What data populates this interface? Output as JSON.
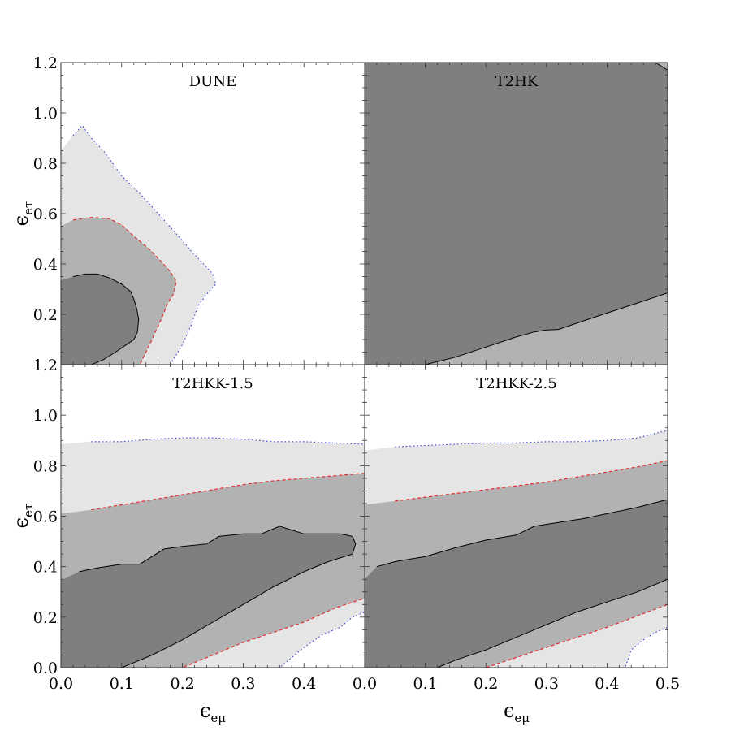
{
  "chart_data": {
    "type": "contour",
    "xlabel": "ϵ",
    "xlabel_sub": "eμ",
    "ylabel": "ϵ",
    "ylabel_sub": "eτ",
    "grid": false,
    "colors": {
      "region_1": "#7f7f7f",
      "region_2": "#b2b2b2",
      "region_3": "#e5e5e5",
      "line_1": "#000000",
      "line_2": "#e03030",
      "line_3": "#3040d0"
    },
    "x_ticks_left": [
      "0.0",
      "0.1",
      "0.2",
      "0.3",
      "0.4",
      ""
    ],
    "x_ticks_right": [
      "0.0",
      "0.1",
      "0.2",
      "0.3",
      "0.4",
      "0.5"
    ],
    "y_ticks_top": [
      "",
      "0.2",
      "0.4",
      "0.6",
      "0.8",
      "1.0",
      "1.2"
    ],
    "y_ticks_bottom": [
      "0.0",
      "0.2",
      "0.4",
      "0.6",
      "0.8",
      "1.0",
      "1.2"
    ],
    "panels": [
      {
        "title": "DUNE",
        "xlim": [
          0,
          0.5
        ],
        "ylim": [
          0,
          1.2
        ],
        "regions": [
          {
            "level": 3,
            "points": [
              [
                0,
                0
              ],
              [
                0,
                0.85
              ],
              [
                0.02,
                0.91
              ],
              [
                0.035,
                0.95
              ],
              [
                0.05,
                0.9
              ],
              [
                0.07,
                0.85
              ],
              [
                0.1,
                0.75
              ],
              [
                0.13,
                0.68
              ],
              [
                0.16,
                0.6
              ],
              [
                0.19,
                0.52
              ],
              [
                0.215,
                0.45
              ],
              [
                0.235,
                0.4
              ],
              [
                0.25,
                0.36
              ],
              [
                0.255,
                0.32
              ],
              [
                0.24,
                0.28
              ],
              [
                0.225,
                0.23
              ],
              [
                0.215,
                0.16
              ],
              [
                0.2,
                0.08
              ],
              [
                0.18,
                0
              ]
            ]
          },
          {
            "level": 2,
            "points": [
              [
                0,
                0
              ],
              [
                0,
                0.55
              ],
              [
                0.02,
                0.575
              ],
              [
                0.05,
                0.585
              ],
              [
                0.08,
                0.58
              ],
              [
                0.1,
                0.555
              ],
              [
                0.12,
                0.51
              ],
              [
                0.145,
                0.46
              ],
              [
                0.165,
                0.41
              ],
              [
                0.18,
                0.37
              ],
              [
                0.19,
                0.33
              ],
              [
                0.185,
                0.28
              ],
              [
                0.175,
                0.24
              ],
              [
                0.165,
                0.18
              ],
              [
                0.15,
                0.1
              ],
              [
                0.14,
                0.05
              ],
              [
                0.13,
                0
              ]
            ]
          },
          {
            "level": 1,
            "points": [
              [
                0,
                0
              ],
              [
                0,
                0.335
              ],
              [
                0.02,
                0.35
              ],
              [
                0.04,
                0.36
              ],
              [
                0.06,
                0.36
              ],
              [
                0.08,
                0.345
              ],
              [
                0.1,
                0.32
              ],
              [
                0.115,
                0.29
              ],
              [
                0.12,
                0.26
              ],
              [
                0.125,
                0.22
              ],
              [
                0.128,
                0.18
              ],
              [
                0.126,
                0.13
              ],
              [
                0.12,
                0.1
              ],
              [
                0.105,
                0.075
              ],
              [
                0.09,
                0.05
              ],
              [
                0.07,
                0.02
              ],
              [
                0.05,
                0
              ]
            ]
          }
        ]
      },
      {
        "title": "T2HK",
        "xlim": [
          0,
          0.5
        ],
        "ylim": [
          0,
          1.2
        ],
        "regions": [
          {
            "level": 3,
            "points": [
              [
                0,
                0
              ],
              [
                0,
                1.2
              ],
              [
                0.5,
                1.2
              ],
              [
                0.5,
                0
              ]
            ]
          },
          {
            "level": 2,
            "points": [
              [
                0,
                0
              ],
              [
                0,
                1.2
              ],
              [
                0.5,
                1.2
              ],
              [
                0.5,
                0
              ]
            ]
          },
          {
            "level": 1,
            "points": [
              [
                0,
                0
              ],
              [
                0,
                1.2
              ],
              [
                0.48,
                1.2
              ],
              [
                0.5,
                1.17
              ],
              [
                0.5,
                0.285
              ],
              [
                0.45,
                0.245
              ],
              [
                0.4,
                0.205
              ],
              [
                0.35,
                0.165
              ],
              [
                0.32,
                0.14
              ],
              [
                0.3,
                0.138
              ],
              [
                0.28,
                0.13
              ],
              [
                0.25,
                0.11
              ],
              [
                0.2,
                0.07
              ],
              [
                0.15,
                0.03
              ],
              [
                0.1,
                0
              ]
            ]
          }
        ]
      },
      {
        "title": "T2HKK-1.5",
        "xlim": [
          0,
          0.5
        ],
        "ylim": [
          0,
          1.2
        ],
        "regions": [
          {
            "level": 3,
            "points": [
              [
                0,
                0
              ],
              [
                0,
                0.885
              ],
              [
                0.05,
                0.895
              ],
              [
                0.1,
                0.895
              ],
              [
                0.15,
                0.905
              ],
              [
                0.2,
                0.91
              ],
              [
                0.25,
                0.91
              ],
              [
                0.3,
                0.905
              ],
              [
                0.35,
                0.895
              ],
              [
                0.4,
                0.895
              ],
              [
                0.45,
                0.89
              ],
              [
                0.5,
                0.885
              ],
              [
                0.5,
                0.22
              ],
              [
                0.48,
                0.2
              ],
              [
                0.46,
                0.16
              ],
              [
                0.43,
                0.13
              ],
              [
                0.4,
                0.08
              ],
              [
                0.38,
                0.04
              ],
              [
                0.36,
                0
              ]
            ]
          },
          {
            "level": 2,
            "points": [
              [
                0,
                0
              ],
              [
                0,
                0.61
              ],
              [
                0.05,
                0.625
              ],
              [
                0.1,
                0.645
              ],
              [
                0.15,
                0.665
              ],
              [
                0.2,
                0.685
              ],
              [
                0.25,
                0.705
              ],
              [
                0.3,
                0.725
              ],
              [
                0.35,
                0.74
              ],
              [
                0.4,
                0.75
              ],
              [
                0.45,
                0.76
              ],
              [
                0.5,
                0.77
              ],
              [
                0.5,
                0.275
              ],
              [
                0.45,
                0.235
              ],
              [
                0.4,
                0.18
              ],
              [
                0.35,
                0.14
              ],
              [
                0.3,
                0.1
              ],
              [
                0.25,
                0.05
              ],
              [
                0.2,
                0
              ]
            ]
          },
          {
            "level": 1,
            "points": [
              [
                0,
                0
              ],
              [
                0,
                0.345
              ],
              [
                0.03,
                0.38
              ],
              [
                0.06,
                0.395
              ],
              [
                0.1,
                0.41
              ],
              [
                0.13,
                0.41
              ],
              [
                0.15,
                0.44
              ],
              [
                0.17,
                0.47
              ],
              [
                0.2,
                0.48
              ],
              [
                0.24,
                0.49
              ],
              [
                0.26,
                0.52
              ],
              [
                0.3,
                0.53
              ],
              [
                0.33,
                0.53
              ],
              [
                0.36,
                0.56
              ],
              [
                0.4,
                0.53
              ],
              [
                0.46,
                0.53
              ],
              [
                0.48,
                0.52
              ],
              [
                0.485,
                0.49
              ],
              [
                0.48,
                0.45
              ],
              [
                0.44,
                0.42
              ],
              [
                0.4,
                0.38
              ],
              [
                0.35,
                0.32
              ],
              [
                0.3,
                0.25
              ],
              [
                0.25,
                0.18
              ],
              [
                0.2,
                0.11
              ],
              [
                0.15,
                0.05
              ],
              [
                0.12,
                0.02
              ],
              [
                0.1,
                0
              ]
            ]
          }
        ]
      },
      {
        "title": "T2HKK-2.5",
        "xlim": [
          0,
          0.5
        ],
        "ylim": [
          0,
          1.2
        ],
        "regions": [
          {
            "level": 3,
            "points": [
              [
                0,
                0
              ],
              [
                0,
                0.86
              ],
              [
                0.05,
                0.875
              ],
              [
                0.1,
                0.88
              ],
              [
                0.15,
                0.885
              ],
              [
                0.2,
                0.89
              ],
              [
                0.25,
                0.89
              ],
              [
                0.3,
                0.895
              ],
              [
                0.35,
                0.895
              ],
              [
                0.4,
                0.9
              ],
              [
                0.45,
                0.91
              ],
              [
                0.5,
                0.94
              ],
              [
                0.5,
                0.16
              ],
              [
                0.48,
                0.14
              ],
              [
                0.46,
                0.11
              ],
              [
                0.44,
                0.07
              ],
              [
                0.43,
                0
              ]
            ]
          },
          {
            "level": 2,
            "points": [
              [
                0,
                0
              ],
              [
                0,
                0.645
              ],
              [
                0.05,
                0.66
              ],
              [
                0.1,
                0.675
              ],
              [
                0.15,
                0.69
              ],
              [
                0.2,
                0.705
              ],
              [
                0.25,
                0.72
              ],
              [
                0.3,
                0.735
              ],
              [
                0.35,
                0.755
              ],
              [
                0.4,
                0.775
              ],
              [
                0.45,
                0.795
              ],
              [
                0.5,
                0.82
              ],
              [
                0.5,
                0.25
              ],
              [
                0.45,
                0.205
              ],
              [
                0.4,
                0.16
              ],
              [
                0.35,
                0.12
              ],
              [
                0.3,
                0.08
              ],
              [
                0.25,
                0.04
              ],
              [
                0.2,
                0
              ]
            ]
          },
          {
            "level": 1,
            "points": [
              [
                0,
                0
              ],
              [
                0,
                0.35
              ],
              [
                0.02,
                0.4
              ],
              [
                0.05,
                0.42
              ],
              [
                0.1,
                0.44
              ],
              [
                0.15,
                0.475
              ],
              [
                0.2,
                0.505
              ],
              [
                0.25,
                0.525
              ],
              [
                0.28,
                0.56
              ],
              [
                0.32,
                0.575
              ],
              [
                0.36,
                0.59
              ],
              [
                0.4,
                0.61
              ],
              [
                0.45,
                0.635
              ],
              [
                0.49,
                0.66
              ],
              [
                0.5,
                0.665
              ],
              [
                0.5,
                0.35
              ],
              [
                0.45,
                0.3
              ],
              [
                0.4,
                0.26
              ],
              [
                0.35,
                0.22
              ],
              [
                0.3,
                0.17
              ],
              [
                0.25,
                0.12
              ],
              [
                0.2,
                0.07
              ],
              [
                0.15,
                0.03
              ],
              [
                0.12,
                0
              ]
            ]
          }
        ]
      }
    ]
  }
}
